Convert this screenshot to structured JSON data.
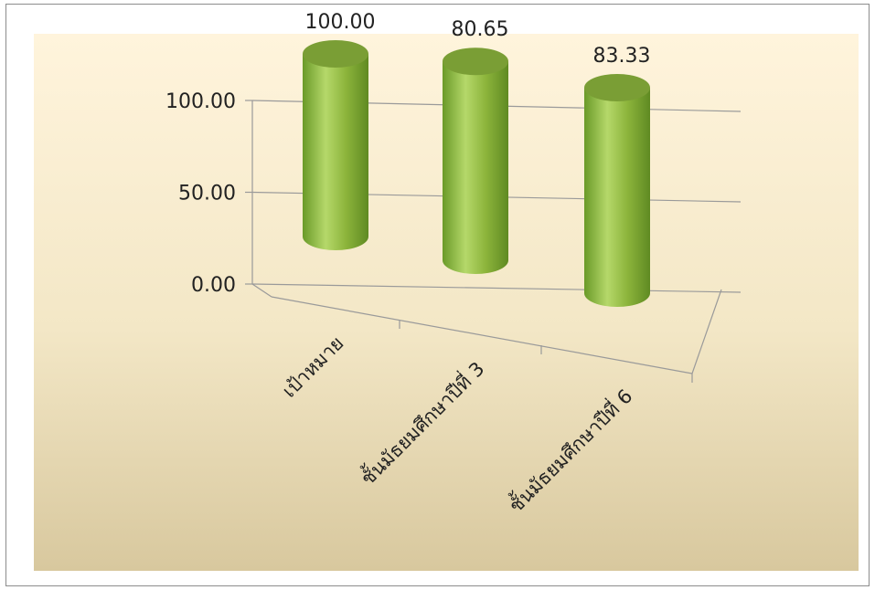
{
  "chart_data": {
    "type": "bar",
    "style": "3d-cylinder",
    "categories": [
      "เป้าหมาย",
      "ชั้นมัธยมศึกษาปีที่ 3",
      "ชั้นมัธยมศึกษาปีที่ 6"
    ],
    "values": [
      100.0,
      80.65,
      83.33
    ],
    "data_labels": [
      "100.00",
      "80.65",
      "83.33"
    ],
    "yticks": [
      0,
      50,
      100
    ],
    "ytick_labels": [
      "0.00",
      "50.00",
      "100.00"
    ],
    "ylim": [
      0,
      100
    ],
    "grid": true,
    "legend": "none",
    "title": "",
    "xlabel": "",
    "ylabel": "",
    "colors": {
      "bar": "#8db53c",
      "bar_light": "#b5d86a",
      "bar_dark": "#5f8a22",
      "bar_top": "#7a9e35",
      "background_top": "#fff4dc",
      "background_bottom": "#d8c89e",
      "gridline": "#9a9a9a"
    }
  }
}
